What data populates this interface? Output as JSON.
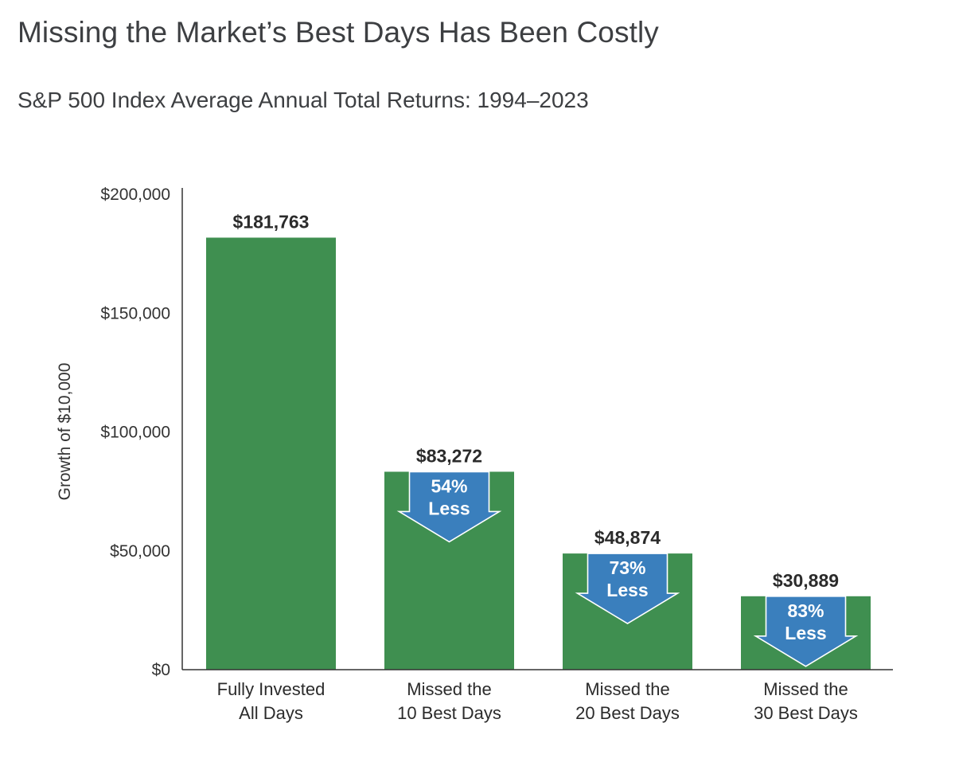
{
  "header": {
    "title": "Missing the Market’s Best Days Has Been Costly",
    "subtitle": "S&P 500 Index Average Annual Total Returns: 1994–2023"
  },
  "colors": {
    "bar": "#3f8f50",
    "arrow_fill": "#3a7fbd",
    "arrow_stroke": "#ffffff",
    "axis": "#333333"
  },
  "chart_data": {
    "type": "bar",
    "title": "",
    "xlabel": "",
    "ylabel": "Growth of $10,000",
    "ylim": [
      0,
      200000
    ],
    "yticks": [
      {
        "value": 0,
        "label": "$0"
      },
      {
        "value": 50000,
        "label": "$50,000"
      },
      {
        "value": 100000,
        "label": "$100,000"
      },
      {
        "value": 150000,
        "label": "$150,000"
      },
      {
        "value": 200000,
        "label": "$200,000"
      }
    ],
    "grid": false,
    "categories": [
      [
        "Fully Invested",
        "All Days"
      ],
      [
        "Missed the",
        "10 Best Days"
      ],
      [
        "Missed the",
        "20 Best Days"
      ],
      [
        "Missed the",
        "30 Best Days"
      ]
    ],
    "values": [
      181763,
      83272,
      48874,
      30889
    ],
    "value_labels": [
      "$181,763",
      "$83,272",
      "$48,874",
      "$30,889"
    ],
    "annotations": [
      null,
      [
        "54%",
        "Less"
      ],
      [
        "73%",
        "Less"
      ],
      [
        "83%",
        "Less"
      ]
    ]
  }
}
